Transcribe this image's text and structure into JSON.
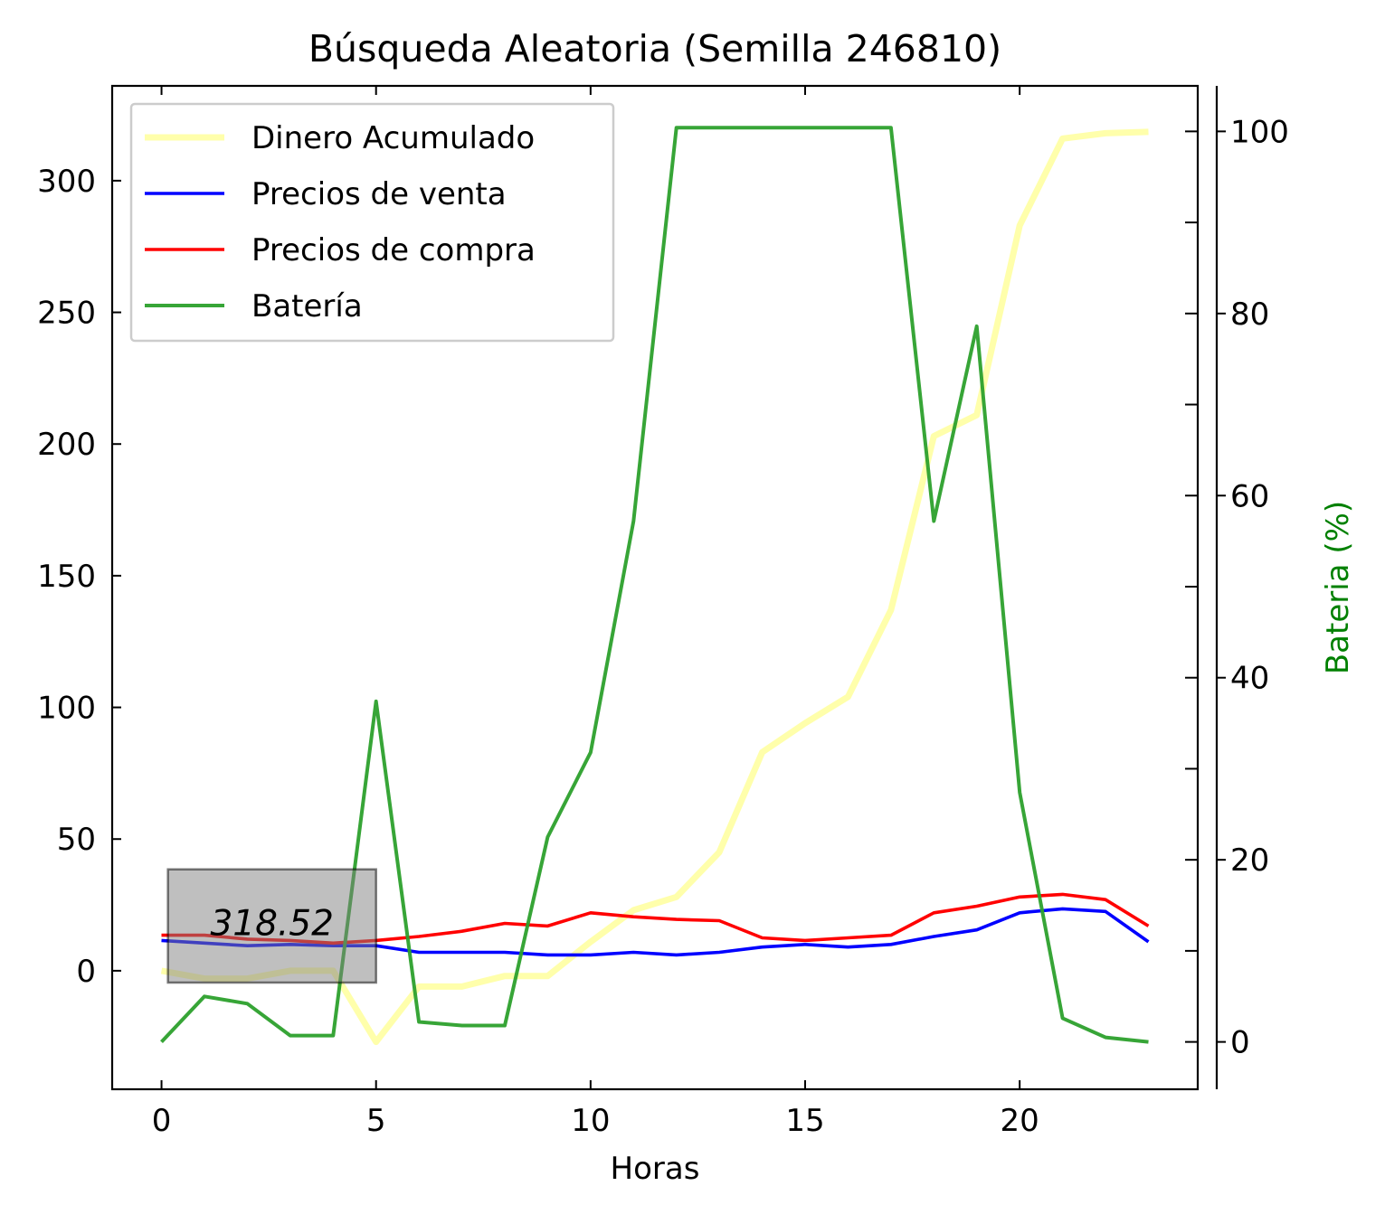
{
  "chart_data": {
    "type": "line",
    "title": "Búsqueda Aleatoria (Semilla 246810)",
    "xlabel": "Horas",
    "ylabel": "",
    "y2label": "Bateria (%)",
    "xlim": [
      -1.15,
      24.15
    ],
    "ylim": [
      -45,
      336
    ],
    "y2lim": [
      -5.2,
      105
    ],
    "xticks": [
      0,
      5,
      10,
      15,
      20
    ],
    "yticks": [
      0,
      50,
      100,
      150,
      200,
      250,
      300
    ],
    "y2ticks": [
      0,
      20,
      40,
      60,
      80,
      100
    ],
    "grid": false,
    "legend_position": "top-left",
    "x": [
      0,
      1,
      2,
      3,
      4,
      5,
      6,
      7,
      8,
      9,
      10,
      11,
      12,
      13,
      14,
      15,
      16,
      17,
      18,
      19,
      20,
      21,
      22,
      23
    ],
    "series": [
      {
        "name": "Dinero Acumulado",
        "axis": "left",
        "color": "#ffff66",
        "values": [
          0,
          -3,
          -3,
          0,
          0,
          -27,
          -6,
          -6,
          -2,
          -2,
          11,
          23,
          28,
          45,
          83,
          94,
          104,
          137,
          203,
          211,
          283,
          316,
          318,
          318.52
        ]
      },
      {
        "name": "Precios de venta",
        "axis": "left",
        "color": "#0000ff",
        "values": [
          11.5,
          10.5,
          9.5,
          10,
          9.5,
          9.5,
          7,
          7,
          7,
          6,
          6,
          7,
          6,
          7,
          9,
          10,
          9,
          10,
          13,
          15.5,
          22,
          23.5,
          22.5,
          11
        ]
      },
      {
        "name": "Precios de compra",
        "axis": "left",
        "color": "#ff0000",
        "values": [
          13.5,
          13.5,
          12,
          11.5,
          10.5,
          11.5,
          13,
          15,
          18,
          17,
          22,
          20.5,
          19.5,
          19,
          12.5,
          11.5,
          12.5,
          13.5,
          22,
          24.5,
          28,
          29,
          27,
          17
        ]
      },
      {
        "name": "Batería",
        "axis": "right",
        "color": "#2ca02c",
        "values": [
          0,
          5,
          4.2,
          0.7,
          0.7,
          37.4,
          2.2,
          1.8,
          1.8,
          22.5,
          31.8,
          57.2,
          100.4,
          100.4,
          100.4,
          100.4,
          100.4,
          100.4,
          57.2,
          78.6,
          27.4,
          2.6,
          0.5,
          0
        ]
      }
    ],
    "annotation": {
      "text": "318.52",
      "x_from": 0.15,
      "x_to": 5,
      "y_from": -4.5,
      "y_to": 38.5
    }
  }
}
